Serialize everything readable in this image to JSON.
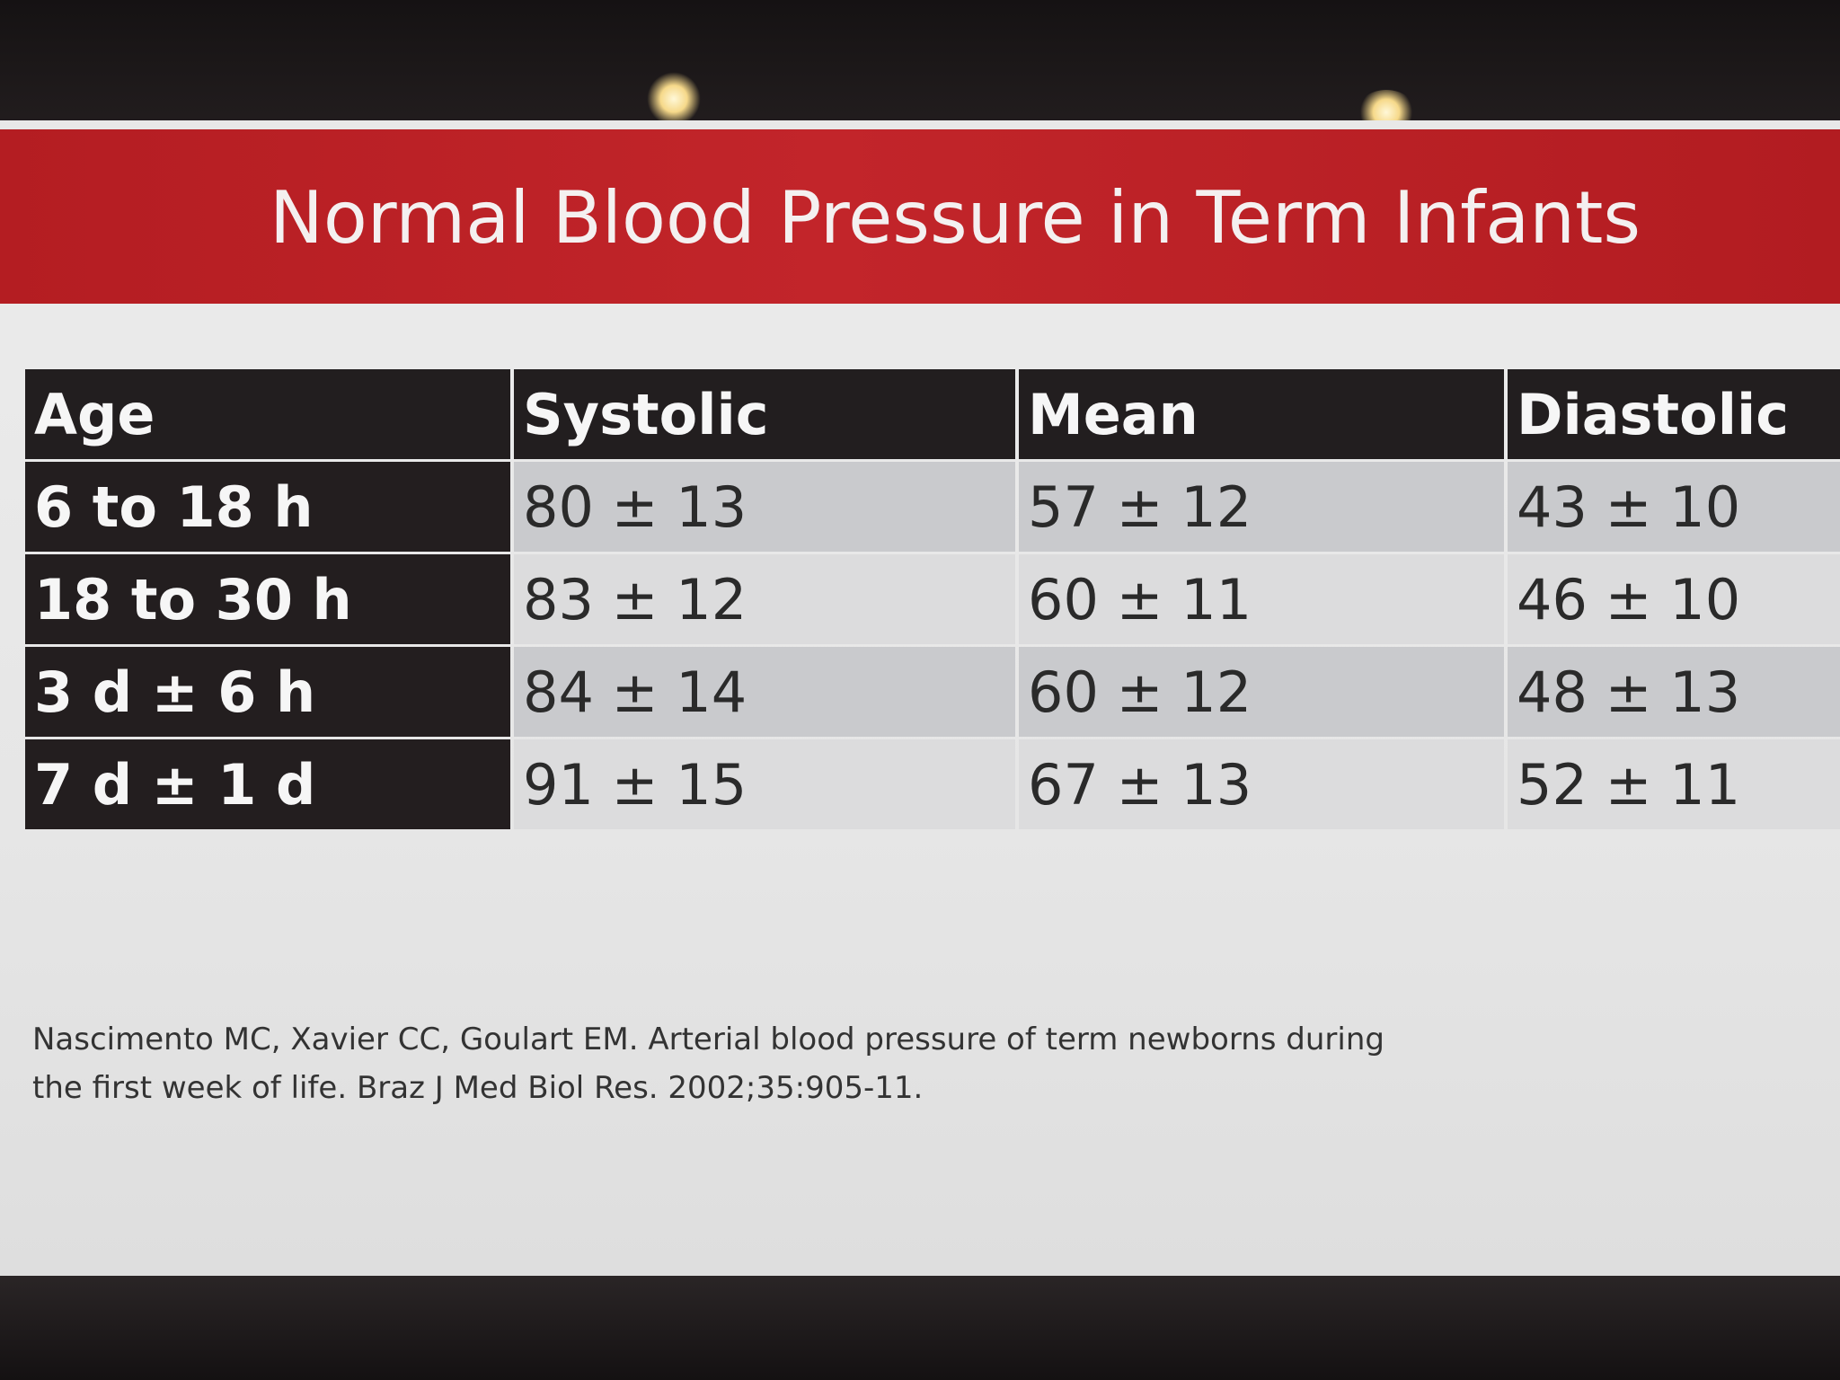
{
  "slide": {
    "title": "Normal Blood Pressure in Term Infants",
    "header_color": "#c2252a",
    "table": {
      "columns": [
        "Age",
        "Systolic",
        "Mean",
        "Diastolic"
      ],
      "rows": [
        {
          "age": "6 to 18 h",
          "systolic": "80 ± 13",
          "mean": "57 ± 12",
          "diastolic": "43 ± 10"
        },
        {
          "age": "18 to 30 h",
          "systolic": "83 ± 12",
          "mean": "60 ± 11",
          "diastolic": "46 ± 10"
        },
        {
          "age": "3 d ± 6 h",
          "systolic": "84 ± 14",
          "mean": "60 ± 12",
          "diastolic": "48 ± 13"
        },
        {
          "age": "7 d ± 1 d",
          "systolic": "91 ± 15",
          "mean": "67 ± 13",
          "diastolic": "52 ± 11"
        }
      ]
    },
    "citation": {
      "line1": "Nascimento MC, Xavier CC, Goulart EM. Arterial blood pressure of term newborns during",
      "line2": "the first week of life. Braz J Med Biol Res. 2002;35:905-11."
    }
  }
}
